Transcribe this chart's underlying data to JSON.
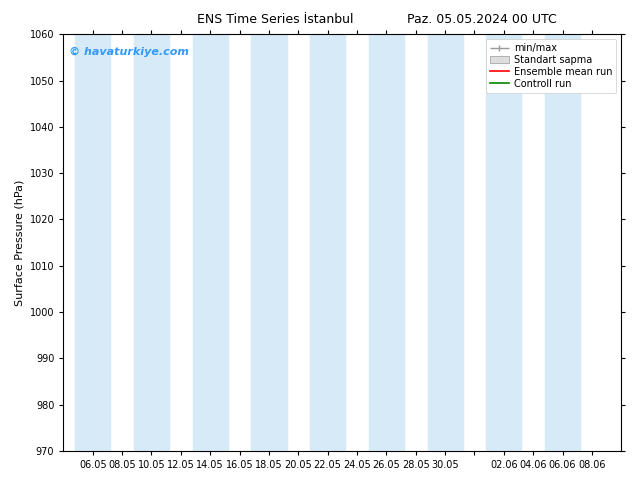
{
  "title": "ENS Time Series İstanbul",
  "title2": "Paz. 05.05.2024 00 UTC",
  "ylabel": "Surface Pressure (hPa)",
  "ylim": [
    970,
    1060
  ],
  "yticks": [
    970,
    980,
    990,
    1000,
    1010,
    1020,
    1030,
    1040,
    1050,
    1060
  ],
  "xtick_labels": [
    "06.05",
    "08.05",
    "10.05",
    "12.05",
    "14.05",
    "16.05",
    "18.05",
    "20.05",
    "22.05",
    "24.05",
    "26.05",
    "28.05",
    "30.05",
    "",
    "02.06",
    "04.06",
    "06.06",
    "08.06"
  ],
  "watermark": "© havaturkiye.com",
  "bg_color": "#ffffff",
  "plot_bg_color": "#ffffff",
  "shade_color": "#d6eaf8",
  "legend_labels": [
    "min/max",
    "Standart sapma",
    "Ensemble mean run",
    "Controll run"
  ],
  "legend_colors": [
    "#999999",
    "#cccccc",
    "#ff0000",
    "#008800"
  ],
  "title_fontsize": 9,
  "axis_label_fontsize": 8,
  "tick_fontsize": 7,
  "watermark_fontsize": 8,
  "legend_fontsize": 7
}
